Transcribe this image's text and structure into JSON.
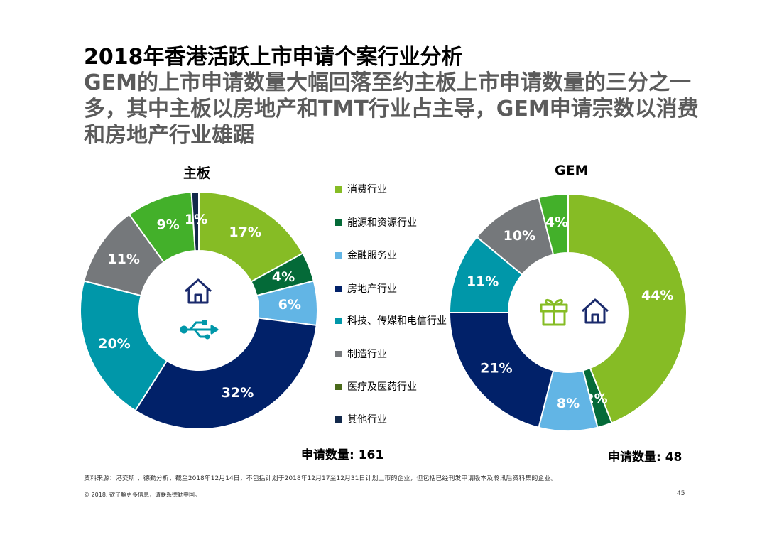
{
  "title": "2018年香港活跃上市申请个案行业分析",
  "subtitle": "GEM的上市申请数量大幅回落至约主板上市申请数量的三分之一多，其中主板以房地产和TMT行业占主导，GEM申请宗数以消费和房地产行业雄踞",
  "icons": {
    "main_board": [
      "house-icon",
      "usb-icon"
    ],
    "gem": [
      "gift-icon",
      "house-icon"
    ]
  },
  "chart_data": [
    {
      "type": "pie",
      "title": "主板",
      "categories": [
        "消费行业",
        "能源和资源行业",
        "金融服务业",
        "房地产行业",
        "科技、传媒和电信行业",
        "制造行业",
        "医疗及医药行业",
        "其他行业"
      ],
      "values": [
        17,
        4,
        6,
        32,
        20,
        11,
        9,
        1
      ],
      "labels": [
        "17%",
        "4%",
        "6%",
        "32%",
        "20%",
        "11%",
        "9%",
        "1%"
      ],
      "colors": [
        "#86bc25",
        "#046a38",
        "#62b5e5",
        "#012169",
        "#0097a9",
        "#75787b",
        "#43b02a",
        "#13294b"
      ],
      "footer": "申请数量: 161"
    },
    {
      "type": "pie",
      "title": "GEM",
      "categories": [
        "消费行业",
        "能源和资源行业",
        "金融服务业",
        "房地产行业",
        "科技、传媒和电信行业",
        "制造行业",
        "医疗及医药行业"
      ],
      "values": [
        44,
        2,
        8,
        21,
        11,
        10,
        4
      ],
      "labels": [
        "44%",
        "2%",
        "8%",
        "21%",
        "11%",
        "10%",
        "4%"
      ],
      "colors": [
        "#86bc25",
        "#046a38",
        "#62b5e5",
        "#012169",
        "#0097a9",
        "#75787b",
        "#43b02a"
      ],
      "footer": "申请数量: 48"
    }
  ],
  "legend": [
    {
      "label": "消费行业",
      "color": "#86bc25"
    },
    {
      "label": "能源和资源行业",
      "color": "#046a38"
    },
    {
      "label": "金融服务业",
      "color": "#62b5e5"
    },
    {
      "label": "房地产行业",
      "color": "#012169"
    },
    {
      "label": "科技、传媒和电信行业",
      "color": "#0097a9"
    },
    {
      "label": "制造行业",
      "color": "#75787b"
    },
    {
      "label": "医疗及医药行业",
      "color": "#4a6a1a"
    },
    {
      "label": "其他行业",
      "color": "#13294b"
    }
  ],
  "source": "资料来源：港交所 ，德勤分析，截至2018年12月14日，不包括计划于2018年12月17至12月31日计划上市的企业，但包括已经刊发申请版本及聆讯后资料集的企业。",
  "copyright": "© 2018. 欲了解更多信息，请联系德勤中国。",
  "page_number": "45"
}
